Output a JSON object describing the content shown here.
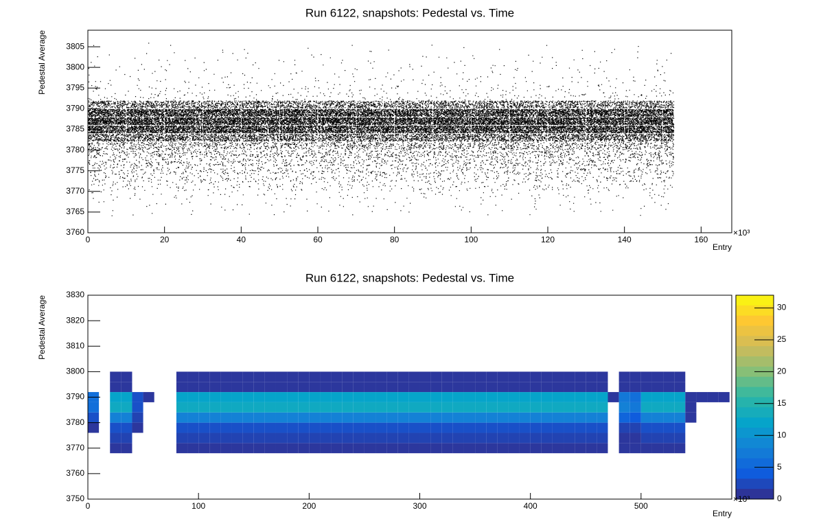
{
  "chart_data": [
    {
      "type": "scatter2d",
      "title": "Run 6122, snapshots: Pedestal vs. Time",
      "x_label": "Entry",
      "y_label": "Pedestal Average",
      "x_multiplier": "×10³",
      "color": "#000000",
      "xlim": [
        0,
        168
      ],
      "xticks": [
        0,
        20,
        40,
        60,
        80,
        100,
        120,
        140,
        160
      ],
      "ylim": [
        3760,
        3809
      ],
      "yticks": [
        3760,
        3765,
        3770,
        3775,
        3780,
        3785,
        3790,
        3795,
        3800,
        3805
      ],
      "xbins": [
        0,
        10,
        20,
        30,
        40,
        50,
        60,
        70,
        80,
        90,
        100,
        110,
        120,
        130,
        140,
        150,
        153
      ],
      "ybins": [
        3764,
        3766,
        3768,
        3770,
        3772,
        3774,
        3776,
        3778,
        3780,
        3782,
        3784,
        3786,
        3788,
        3790,
        3792,
        3794,
        3796,
        3798,
        3800,
        3802,
        3804,
        3806
      ],
      "values": [
        [
          2,
          2,
          2,
          2,
          2,
          2,
          2,
          2,
          2,
          2,
          2,
          2,
          2,
          2,
          2,
          1
        ],
        [
          3,
          3,
          3,
          3,
          3,
          3,
          3,
          3,
          3,
          3,
          3,
          3,
          3,
          3,
          3,
          1
        ],
        [
          6,
          6,
          6,
          6,
          6,
          6,
          6,
          6,
          6,
          6,
          6,
          6,
          6,
          6,
          6,
          2
        ],
        [
          15,
          15,
          15,
          15,
          15,
          15,
          15,
          15,
          15,
          15,
          15,
          15,
          15,
          15,
          15,
          5
        ],
        [
          25,
          25,
          25,
          25,
          25,
          25,
          25,
          25,
          25,
          25,
          25,
          25,
          25,
          25,
          25,
          8
        ],
        [
          35,
          35,
          35,
          35,
          35,
          35,
          35,
          35,
          35,
          35,
          35,
          35,
          35,
          35,
          35,
          10
        ],
        [
          45,
          45,
          45,
          45,
          45,
          45,
          45,
          45,
          45,
          45,
          45,
          45,
          45,
          45,
          45,
          14
        ],
        [
          60,
          60,
          60,
          60,
          60,
          60,
          60,
          60,
          60,
          60,
          60,
          60,
          60,
          60,
          60,
          18
        ],
        [
          90,
          90,
          90,
          90,
          90,
          90,
          90,
          90,
          90,
          90,
          90,
          90,
          90,
          90,
          90,
          27
        ],
        [
          250,
          250,
          250,
          250,
          250,
          250,
          250,
          250,
          250,
          250,
          250,
          250,
          250,
          250,
          250,
          75
        ],
        [
          450,
          450,
          450,
          450,
          450,
          450,
          450,
          450,
          450,
          450,
          450,
          450,
          450,
          450,
          450,
          135
        ],
        [
          500,
          500,
          500,
          500,
          500,
          500,
          500,
          500,
          500,
          500,
          500,
          500,
          500,
          500,
          500,
          150
        ],
        [
          450,
          450,
          450,
          450,
          450,
          450,
          450,
          450,
          450,
          450,
          450,
          450,
          450,
          450,
          450,
          135
        ],
        [
          200,
          200,
          200,
          200,
          200,
          200,
          200,
          200,
          200,
          200,
          200,
          200,
          200,
          200,
          200,
          60
        ],
        [
          12,
          12,
          12,
          12,
          12,
          12,
          12,
          12,
          12,
          12,
          12,
          12,
          12,
          12,
          12,
          4
        ],
        [
          8,
          8,
          8,
          8,
          8,
          8,
          8,
          8,
          8,
          8,
          8,
          8,
          8,
          8,
          8,
          2
        ],
        [
          5,
          5,
          5,
          5,
          5,
          5,
          5,
          5,
          5,
          5,
          5,
          5,
          5,
          5,
          5,
          2
        ],
        [
          4,
          4,
          4,
          4,
          4,
          4,
          4,
          4,
          4,
          4,
          4,
          4,
          4,
          4,
          4,
          1
        ],
        [
          3,
          3,
          3,
          3,
          3,
          3,
          3,
          3,
          3,
          3,
          3,
          3,
          3,
          3,
          3,
          1
        ],
        [
          2,
          2,
          2,
          2,
          2,
          2,
          2,
          2,
          2,
          2,
          2,
          2,
          2,
          2,
          2,
          1
        ],
        [
          1,
          1,
          1,
          1,
          1,
          1,
          1,
          1,
          1,
          1,
          1,
          1,
          1,
          1,
          1,
          0
        ]
      ]
    },
    {
      "type": "heatmap",
      "title": "Run 6122, snapshots: Pedestal vs. Time",
      "x_label": "Entry",
      "y_label": "Pedestal Average",
      "x_multiplier": "×10³",
      "xlim": [
        0,
        582
      ],
      "xticks": [
        0,
        100,
        200,
        300,
        400,
        500
      ],
      "ylim": [
        3750,
        3830
      ],
      "yticks": [
        3750,
        3760,
        3770,
        3780,
        3790,
        3800,
        3810,
        3820,
        3830
      ],
      "zlim": [
        0,
        32
      ],
      "zticks": [
        0,
        5,
        10,
        15,
        20,
        25,
        30
      ],
      "palette": [
        "#352a87",
        "#0f5cdd",
        "#1481d6",
        "#06a4ca",
        "#2eb7a4",
        "#87bf77",
        "#d1bb59",
        "#fec832",
        "#f9fb0e"
      ],
      "xbins": [
        0,
        10,
        20,
        30,
        40,
        50,
        60,
        70,
        80,
        90,
        100,
        110,
        120,
        130,
        140,
        150,
        160,
        170,
        180,
        190,
        200,
        210,
        220,
        230,
        240,
        250,
        260,
        270,
        280,
        290,
        300,
        310,
        320,
        330,
        340,
        350,
        360,
        370,
        380,
        390,
        400,
        410,
        420,
        430,
        440,
        450,
        460,
        470,
        480,
        490,
        500,
        510,
        520,
        530,
        540,
        550,
        560,
        570,
        580
      ],
      "ybins": [
        3768,
        3772,
        3776,
        3780,
        3784,
        3788,
        3792,
        3796,
        3800
      ],
      "values": [
        [
          0,
          0,
          1,
          1,
          0,
          0,
          0,
          0,
          1,
          1,
          1,
          1,
          1,
          1,
          1,
          1,
          1,
          1,
          1,
          1,
          1,
          1,
          1,
          1,
          1,
          1,
          1,
          1,
          1,
          1,
          1,
          1,
          1,
          1,
          1,
          1,
          1,
          1,
          1,
          1,
          1,
          1,
          1,
          1,
          1,
          1,
          1,
          0,
          1,
          1,
          1,
          1,
          1,
          1,
          0,
          0,
          0,
          0
        ],
        [
          0,
          0,
          2,
          2,
          0,
          0,
          0,
          0,
          2,
          2,
          2,
          2,
          2,
          2,
          2,
          2,
          2,
          2,
          2,
          2,
          2,
          2,
          2,
          2,
          2,
          2,
          2,
          2,
          2,
          2,
          2,
          2,
          2,
          2,
          2,
          2,
          2,
          2,
          2,
          2,
          2,
          2,
          2,
          2,
          2,
          2,
          2,
          0,
          1,
          1,
          2,
          2,
          2,
          2,
          0,
          0,
          0,
          0
        ],
        [
          1,
          0,
          3,
          3,
          1,
          0,
          0,
          0,
          3,
          3,
          3,
          3,
          3,
          3,
          3,
          3,
          3,
          3,
          3,
          3,
          3,
          3,
          3,
          3,
          3,
          3,
          3,
          3,
          3,
          3,
          3,
          3,
          3,
          3,
          3,
          3,
          3,
          3,
          3,
          3,
          3,
          3,
          3,
          3,
          3,
          3,
          3,
          0,
          2,
          2,
          3,
          3,
          3,
          3,
          0,
          0,
          0,
          0
        ],
        [
          3,
          0,
          8,
          8,
          2,
          0,
          0,
          0,
          8,
          8,
          8,
          8,
          8,
          8,
          8,
          8,
          8,
          8,
          8,
          8,
          8,
          8,
          8,
          8,
          8,
          8,
          8,
          8,
          8,
          8,
          8,
          8,
          8,
          8,
          8,
          8,
          8,
          8,
          8,
          8,
          8,
          8,
          8,
          8,
          8,
          8,
          8,
          0,
          5,
          4,
          8,
          8,
          8,
          8,
          1,
          0,
          0,
          0
        ],
        [
          6,
          0,
          13,
          13,
          3,
          0,
          0,
          0,
          13,
          13,
          13,
          13,
          13,
          13,
          13,
          13,
          13,
          13,
          13,
          13,
          13,
          13,
          13,
          13,
          13,
          13,
          13,
          13,
          13,
          13,
          13,
          13,
          13,
          13,
          13,
          13,
          13,
          13,
          13,
          13,
          13,
          13,
          13,
          13,
          13,
          13,
          13,
          0,
          8,
          7,
          13,
          13,
          13,
          13,
          1,
          0,
          0,
          0
        ],
        [
          6,
          0,
          12,
          12,
          3,
          1,
          0,
          0,
          12,
          12,
          12,
          12,
          12,
          12,
          12,
          12,
          12,
          12,
          12,
          12,
          12,
          12,
          12,
          12,
          12,
          12,
          12,
          12,
          12,
          12,
          12,
          12,
          12,
          12,
          12,
          12,
          12,
          12,
          12,
          12,
          12,
          12,
          12,
          12,
          12,
          12,
          12,
          1,
          7,
          6,
          12,
          12,
          12,
          12,
          1,
          1,
          1,
          1
        ],
        [
          0,
          0,
          1,
          1,
          0,
          0,
          0,
          0,
          1,
          1,
          1,
          1,
          1,
          1,
          1,
          1,
          1,
          1,
          1,
          1,
          1,
          1,
          1,
          1,
          1,
          1,
          1,
          1,
          1,
          1,
          1,
          1,
          1,
          1,
          1,
          1,
          1,
          1,
          1,
          1,
          1,
          1,
          1,
          1,
          1,
          1,
          1,
          0,
          1,
          1,
          1,
          1,
          1,
          1,
          0,
          0,
          0,
          0
        ],
        [
          0,
          0,
          1,
          1,
          0,
          0,
          0,
          0,
          1,
          1,
          1,
          1,
          1,
          1,
          1,
          1,
          1,
          1,
          1,
          1,
          1,
          1,
          1,
          1,
          1,
          1,
          1,
          1,
          1,
          1,
          1,
          1,
          1,
          1,
          1,
          1,
          1,
          1,
          1,
          1,
          1,
          1,
          1,
          1,
          1,
          1,
          1,
          0,
          1,
          1,
          1,
          1,
          1,
          1,
          0,
          0,
          0,
          0
        ]
      ]
    }
  ]
}
